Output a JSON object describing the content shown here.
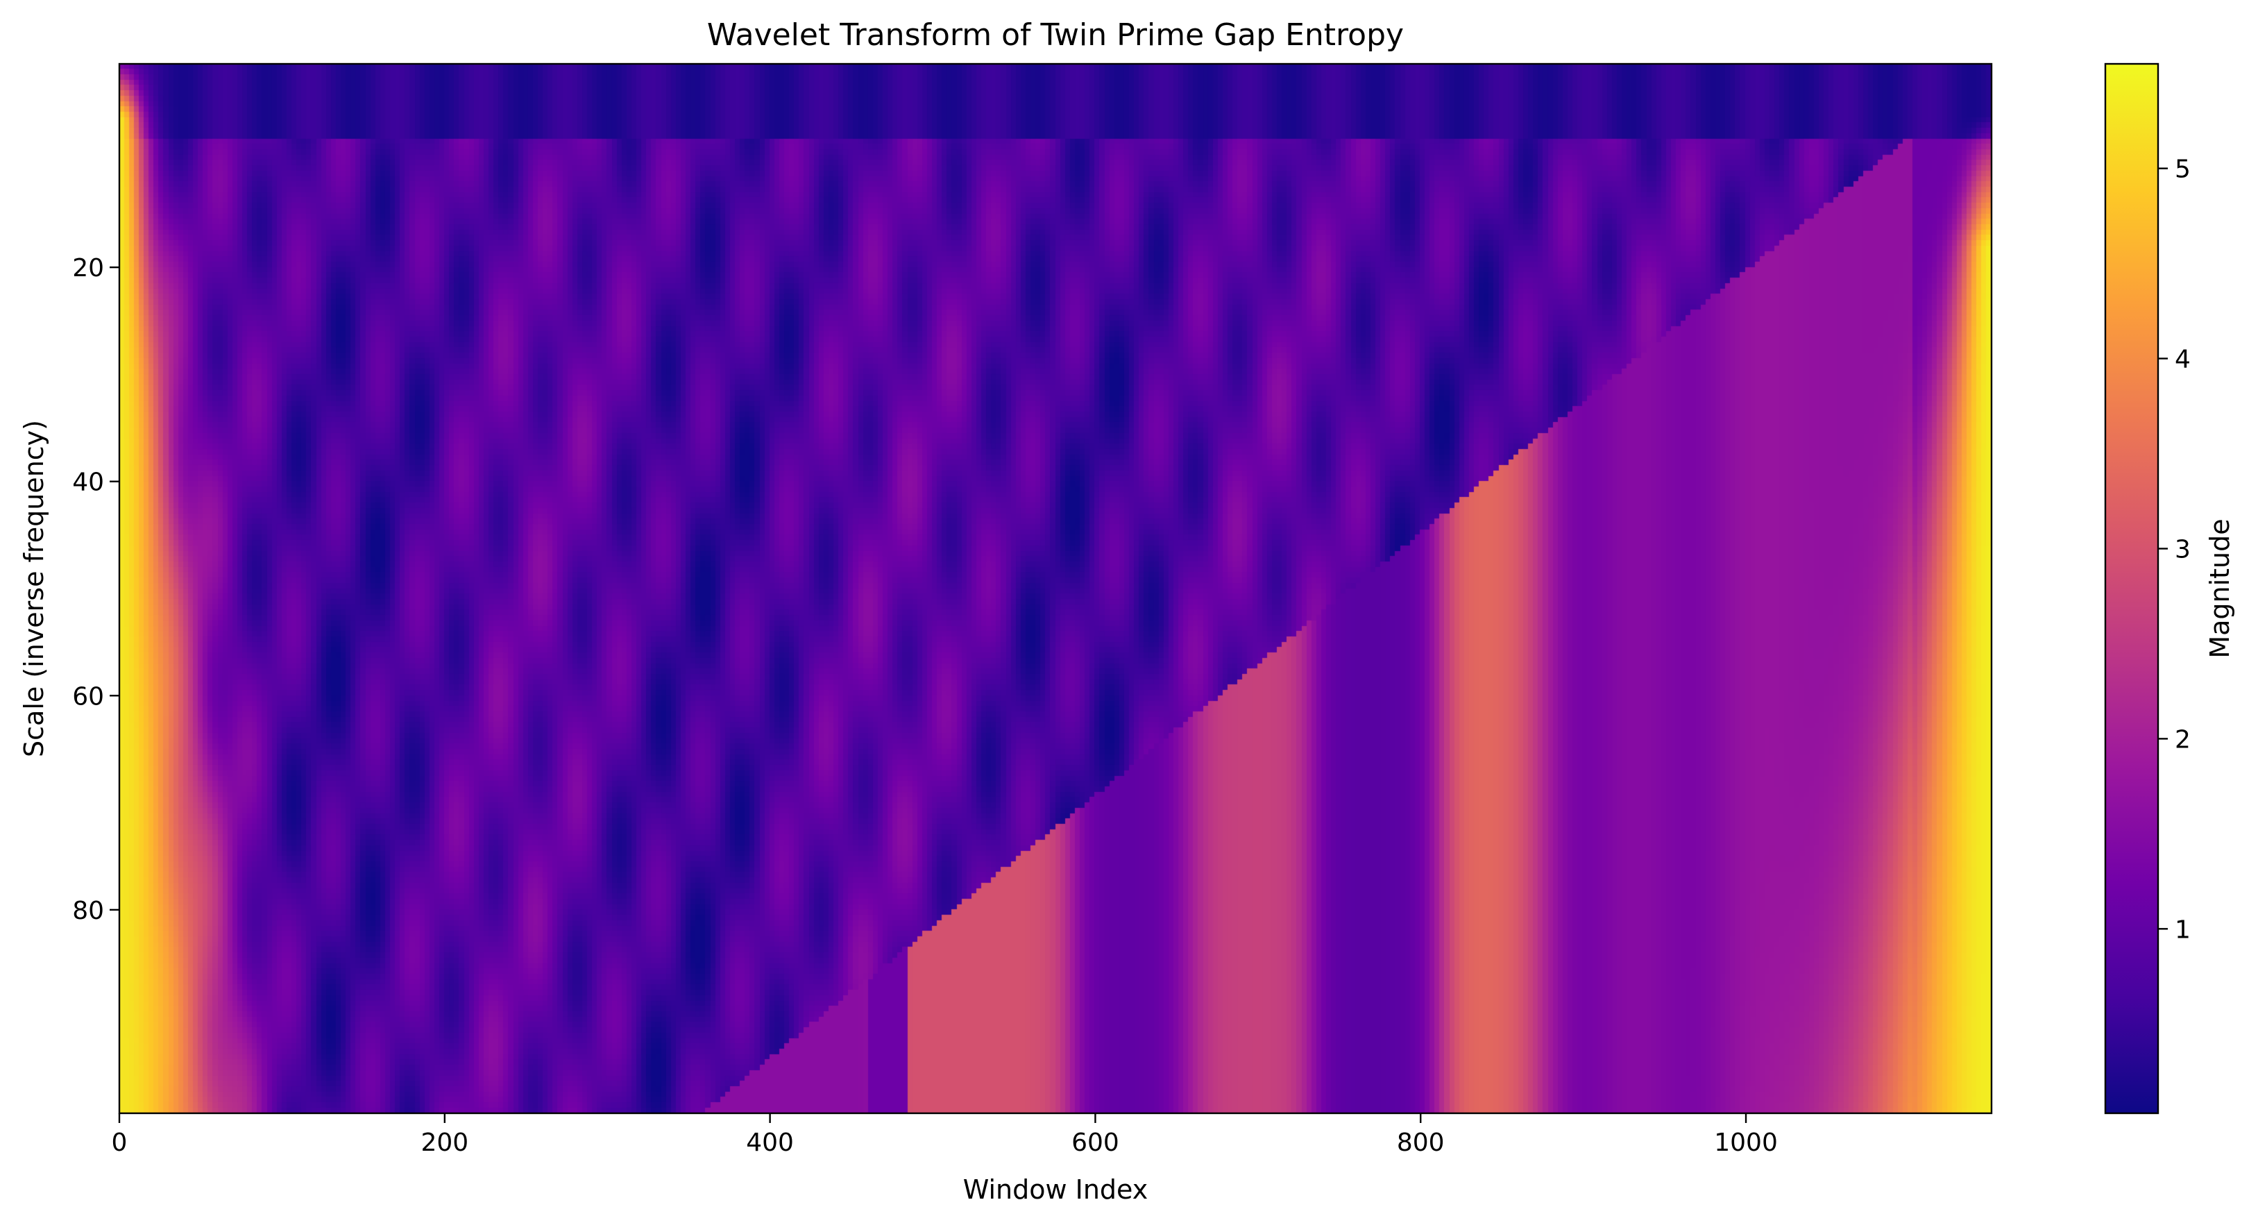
{
  "chart_data": {
    "type": "heatmap",
    "title": "Wavelet Transform of Twin Prime Gap Entropy",
    "xlabel": "Window Index",
    "ylabel": "Scale (inverse frequency)",
    "xlim": [
      0,
      1151
    ],
    "ylim": [
      99,
      1
    ],
    "x_ticks": [
      0,
      200,
      400,
      600,
      800,
      1000
    ],
    "y_ticks": [
      20,
      40,
      60,
      80
    ],
    "colorbar": {
      "label": "Magnitude",
      "min": 0.03,
      "max": 5.55,
      "ticks": [
        1,
        2,
        3,
        4,
        5
      ],
      "colormap": "plasma"
    },
    "features": {
      "diagonal_boundary": {
        "x_at_top": 1100,
        "x_at_bottom": 358,
        "scale_at_top": 8,
        "scale_at_bottom": 99
      },
      "left_edge_bright": {
        "x_range": [
          0,
          60
        ],
        "value": 5.3
      },
      "right_edge_bright": {
        "x_range": [
          1060,
          1151
        ],
        "value": 5.4
      },
      "stripes_below_diagonal": [
        {
          "x": 400,
          "value": 1.6
        },
        {
          "x": 545,
          "value": 3.0
        },
        {
          "x": 625,
          "value": 1.0
        },
        {
          "x": 690,
          "value": 2.7
        },
        {
          "x": 775,
          "value": 0.9
        },
        {
          "x": 850,
          "value": 3.5
        },
        {
          "x": 900,
          "value": 1.0
        },
        {
          "x": 935,
          "value": 2.0
        },
        {
          "x": 960,
          "value": 1.0
        },
        {
          "x": 1000,
          "value": 1.9
        },
        {
          "x": 1040,
          "value": 1.7
        }
      ],
      "upper_region_mean": 0.8
    }
  },
  "palette": [
    "#0d0887",
    "#46039f",
    "#7201a8",
    "#9c179e",
    "#bd3786",
    "#d8576b",
    "#ed7953",
    "#fb9f3a",
    "#fdca26",
    "#f0f921"
  ]
}
